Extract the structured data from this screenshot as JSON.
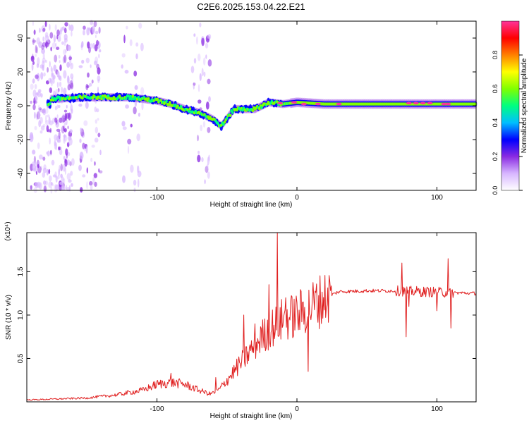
{
  "title": "C2E6.2025.153.04.22.E21",
  "colors": {
    "snr_line": "#e02020",
    "colormap": [
      "#ffffff",
      "#d7b6ff",
      "#8a2be2",
      "#0000ff",
      "#00bfff",
      "#00ff80",
      "#80ff00",
      "#ffff00",
      "#ff8000",
      "#ff0000",
      "#ff3399"
    ]
  },
  "chart_data": [
    {
      "type": "heatmap",
      "xlabel": "Height of straight line (km)",
      "ylabel": "Frequency (Hz)",
      "xlim": [
        -193,
        128
      ],
      "ylim": [
        -50,
        50
      ],
      "xticks": [
        -100,
        0,
        100
      ],
      "yticks": [
        -40,
        -20,
        0,
        20,
        40
      ],
      "colorbar": {
        "label": "Normalized spectral amplitude",
        "range": [
          0,
          1
        ],
        "ticks": [
          "0.0",
          "0.2",
          "0.4",
          "0.6",
          "0.8"
        ]
      },
      "ridge": {
        "description_points": [
          [
            -176,
            4
          ],
          [
            -150,
            5
          ],
          [
            -120,
            5
          ],
          [
            -100,
            3
          ],
          [
            -90,
            1
          ],
          [
            -80,
            -2
          ],
          [
            -70,
            -4
          ],
          [
            -60,
            -8
          ],
          [
            -54,
            -12
          ],
          [
            -45,
            -2
          ],
          [
            -30,
            -2
          ],
          [
            -20,
            2
          ],
          [
            -10,
            1
          ],
          [
            0,
            2
          ],
          [
            20,
            1
          ],
          [
            50,
            1
          ],
          [
            80,
            1
          ],
          [
            100,
            1
          ],
          [
            128,
            1
          ]
        ]
      }
    },
    {
      "type": "line",
      "xlabel": "Height of straight line (km)",
      "ylabel": "SNR (10 * v/v)",
      "scale_label": "(x10⁴)",
      "xlim": [
        -193,
        128
      ],
      "ylim": [
        0,
        1.95
      ],
      "xticks": [
        -100,
        0,
        100
      ],
      "yticks": [
        "0.5",
        "1.0",
        "1.5"
      ],
      "series": [
        {
          "points": [
            [
              -193,
              0.02
            ],
            [
              -170,
              0.03
            ],
            [
              -150,
              0.04
            ],
            [
              -130,
              0.07
            ],
            [
              -110,
              0.12
            ],
            [
              -100,
              0.18
            ],
            [
              -90,
              0.2
            ],
            [
              -80,
              0.18
            ],
            [
              -70,
              0.12
            ],
            [
              -62,
              0.08
            ],
            [
              -55,
              0.15
            ],
            [
              -45,
              0.35
            ],
            [
              -35,
              0.55
            ],
            [
              -25,
              0.75
            ],
            [
              -18,
              0.85
            ],
            [
              -10,
              0.95
            ],
            [
              0,
              1.0
            ],
            [
              10,
              1.1
            ],
            [
              20,
              1.2
            ],
            [
              30,
              1.27
            ],
            [
              50,
              1.28
            ],
            [
              70,
              1.28
            ],
            [
              90,
              1.27
            ],
            [
              110,
              1.26
            ],
            [
              128,
              1.25
            ]
          ],
          "spikes": [
            [
              -90,
              0.33
            ],
            [
              -58,
              0.28
            ],
            [
              -38,
              1.0
            ],
            [
              -30,
              0.9
            ],
            [
              -20,
              1.35
            ],
            [
              -14,
              1.95
            ],
            [
              -8,
              1.2
            ],
            [
              8,
              0.35
            ],
            [
              75,
              1.6
            ],
            [
              78,
              0.75
            ],
            [
              108,
              1.65
            ],
            [
              110,
              0.85
            ],
            [
              80,
              1.1
            ],
            [
              100,
              1.05
            ]
          ]
        }
      ]
    }
  ]
}
